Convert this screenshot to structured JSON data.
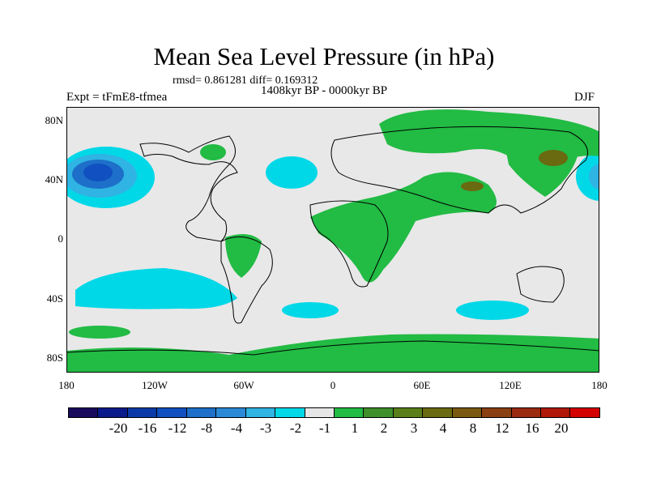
{
  "title": "Mean Sea Level Pressure (in hPa)",
  "stats": "rmsd= 0.861281 diff= 0.169312",
  "period": "1408kyr BP - 0000kyr BP",
  "experiment": "Expt = tFmE8-tfmea",
  "season": "DJF",
  "lat_labels": [
    "80N",
    "40N",
    "0",
    "40S",
    "80S"
  ],
  "lon_labels": [
    "180",
    "120W",
    "60W",
    "0",
    "60E",
    "120E",
    "180"
  ],
  "colorbar": {
    "colors": [
      "#1a0a5e",
      "#0a1a8a",
      "#0b3aa8",
      "#1050c0",
      "#1d6fc9",
      "#2a8ad8",
      "#2fb4e3",
      "#00d8e8",
      "#e6e6e6",
      "#22bb44",
      "#3f8f2a",
      "#5a7f1a",
      "#6a6a10",
      "#7a5a10",
      "#8a4010",
      "#9a2a10",
      "#b01808",
      "#d40000"
    ],
    "labels": [
      "-20",
      "-16",
      "-12",
      "-8",
      "-4",
      "-3",
      "-2",
      "-1",
      "1",
      "2",
      "3",
      "4",
      "8",
      "12",
      "16",
      "20"
    ]
  },
  "icons": [
    "coastline-map"
  ]
}
